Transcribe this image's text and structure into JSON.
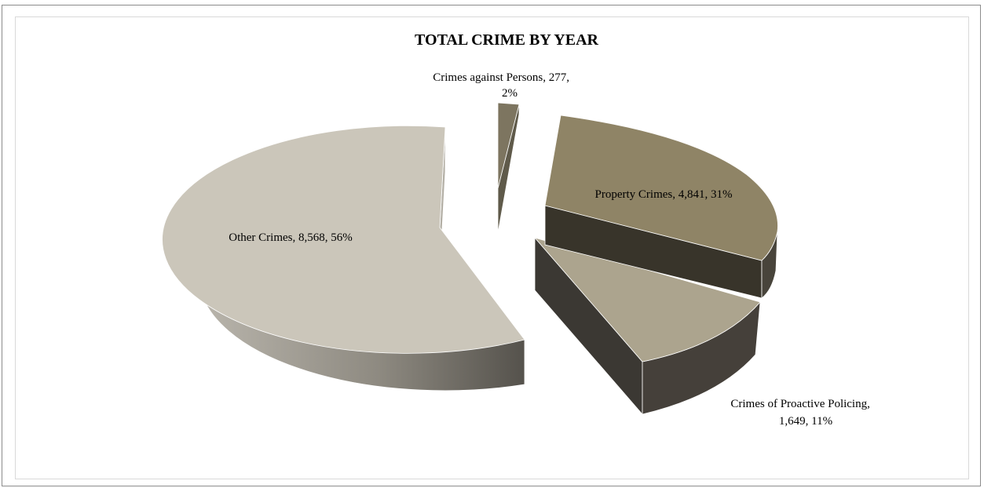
{
  "chart_data": {
    "type": "pie",
    "title": "TOTAL CRIME BY YEAR",
    "style": "3d-exploded",
    "legend": "none",
    "slices": [
      {
        "name": "Crimes against Persons",
        "value": 277,
        "value_label": "277",
        "percent": "2%",
        "color": "#7d7560"
      },
      {
        "name": "Property Crimes",
        "value": 4841,
        "value_label": "4,841",
        "percent": "31%",
        "color": "#8f8466"
      },
      {
        "name": "Crimes of Proactive Policing",
        "value": 1649,
        "value_label": "1,649",
        "percent": "11%",
        "color": "#aca48e"
      },
      {
        "name": "Other Crimes",
        "value": 8568,
        "value_label": "8,568",
        "percent": "56%",
        "color": "#cbc6ba"
      }
    ]
  }
}
